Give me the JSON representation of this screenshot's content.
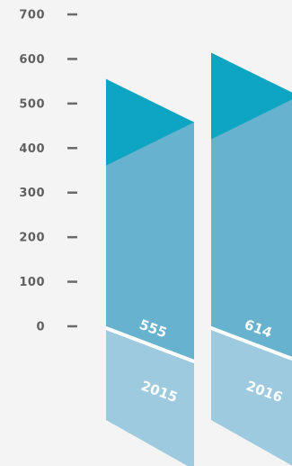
{
  "chart_data": {
    "type": "bar",
    "title": "",
    "xlabel": "",
    "ylabel": "",
    "categories": [
      "2015",
      "2016"
    ],
    "values": [
      555,
      614
    ],
    "value_labels": [
      "555",
      "614"
    ],
    "ylim": [
      0,
      700
    ],
    "yticks": [
      0,
      100,
      200,
      300,
      400,
      500,
      600,
      700
    ],
    "ytick_labels": [
      "0",
      "100",
      "200",
      "300",
      "400",
      "500",
      "600",
      "700"
    ],
    "grid": false,
    "legend": "none",
    "colors": {
      "background": "#f4f4f4",
      "bar_main": "#66b2cf",
      "bar_top": "#0ea5c3",
      "bar_base": "#9dcadf",
      "text_axis": "#5f5f5f",
      "text_label": "#ffffff"
    }
  }
}
